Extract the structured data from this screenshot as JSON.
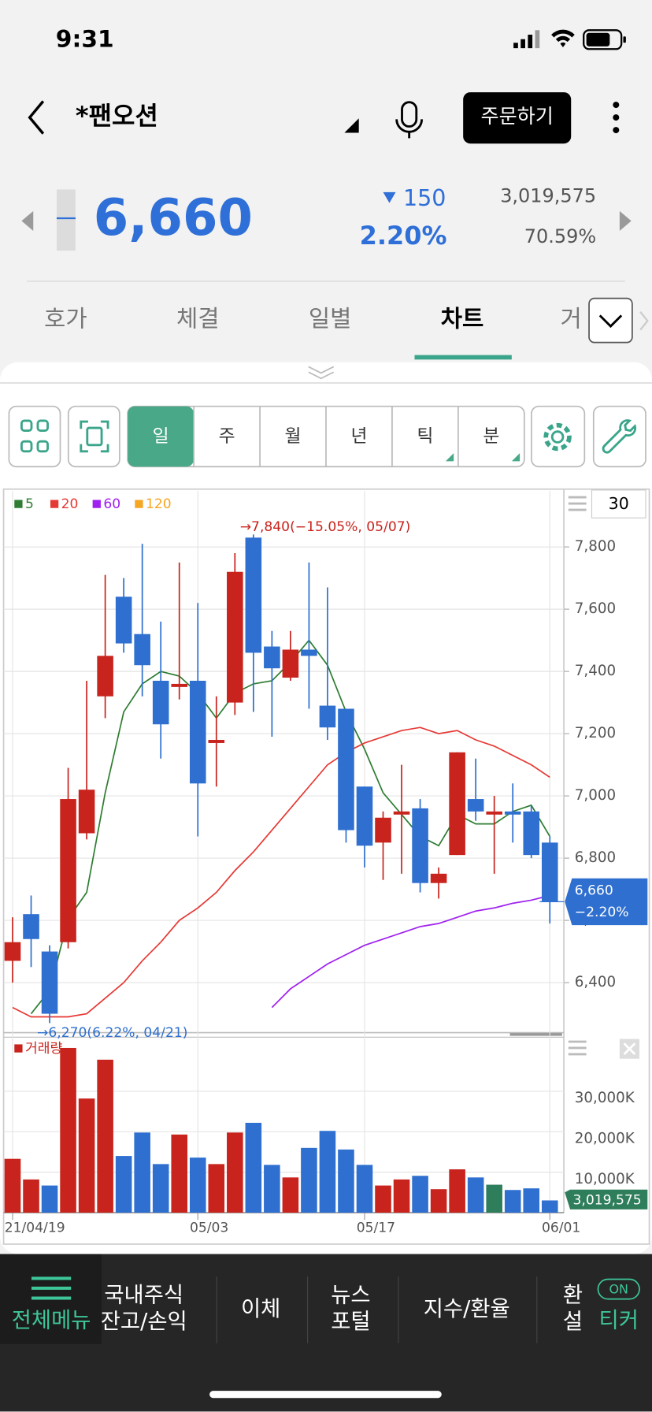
{
  "status_bar": {
    "time": "9:31"
  },
  "header": {
    "title": "*팬오션",
    "order_button": "주문하기"
  },
  "quote": {
    "price": "6,660",
    "change": "150",
    "change_rate": "2.20%",
    "volume": "3,019,575",
    "volume_ratio": "70.59%"
  },
  "tabs": [
    "호가",
    "체결",
    "일별",
    "차트",
    "거"
  ],
  "periods": [
    "일",
    "주",
    "월",
    "년",
    "틱",
    "분"
  ],
  "chart_data": {
    "type": "candlestick",
    "categories": [
      "21/04/19",
      null,
      null,
      null,
      null,
      null,
      null,
      null,
      null,
      null,
      "05/03",
      null,
      null,
      null,
      null,
      null,
      null,
      null,
      null,
      "05/17",
      null,
      null,
      null,
      null,
      null,
      null,
      null,
      null,
      null,
      "06/01"
    ],
    "open": [
      6470,
      6620,
      6500,
      6530,
      6880,
      7320,
      7640,
      7520,
      7370,
      7350,
      7370,
      7170,
      7300,
      7830,
      7480,
      7380,
      7470,
      7290,
      7280,
      7030,
      6850,
      6940,
      6960,
      6720,
      6810,
      6990,
      6940,
      6950,
      6950,
      6850
    ],
    "high": [
      6610,
      6680,
      6520,
      7090,
      7370,
      7710,
      7700,
      7810,
      7560,
      7750,
      7620,
      7320,
      7780,
      7840,
      7530,
      7530,
      7750,
      7670,
      7280,
      7030,
      6950,
      7100,
      6990,
      6770,
      7140,
      7120,
      7000,
      7040,
      6970,
      6870
    ],
    "low": [
      6400,
      6450,
      6270,
      6510,
      6860,
      7250,
      7460,
      7320,
      7120,
      7310,
      6870,
      7030,
      7260,
      7270,
      7190,
      7370,
      7280,
      7180,
      6850,
      6770,
      6730,
      6750,
      6690,
      6670,
      6810,
      6920,
      6750,
      6850,
      6800,
      6590
    ],
    "close": [
      6530,
      6540,
      6300,
      6990,
      7020,
      7450,
      7490,
      7420,
      7230,
      7360,
      7040,
      7180,
      7720,
      7460,
      7410,
      7470,
      7450,
      7220,
      6890,
      6840,
      6930,
      6950,
      6720,
      6750,
      7140,
      6950,
      6950,
      6940,
      6810,
      6660
    ],
    "up_color": "#c8241d",
    "down_color": "#2e6fcf",
    "series": [
      {
        "name": "5",
        "color": "#2e7d32",
        "values": [
          null,
          6300,
          6375,
          6605,
          6690,
          7010,
          7270,
          7360,
          7400,
          7385,
          7330,
          7250,
          7330,
          7360,
          7370,
          7430,
          7500,
          7420,
          7270,
          7150,
          7010,
          6940,
          6870,
          6840,
          6940,
          6910,
          6910,
          6950,
          6970,
          6870
        ]
      },
      {
        "name": "20",
        "color": "#e53935",
        "values": [
          6320,
          6290,
          6290,
          6290,
          6300,
          6350,
          6400,
          6470,
          6530,
          6600,
          6640,
          6690,
          6760,
          6820,
          6890,
          6960,
          7030,
          7100,
          7140,
          7170,
          7190,
          7210,
          7220,
          7200,
          7210,
          7180,
          7160,
          7130,
          7100,
          7060
        ]
      },
      {
        "name": "60",
        "color": "#a020f0",
        "values": [
          null,
          null,
          null,
          null,
          null,
          null,
          null,
          null,
          null,
          null,
          null,
          null,
          null,
          null,
          6320,
          6380,
          6420,
          6460,
          6490,
          6520,
          6540,
          6560,
          6580,
          6590,
          6610,
          6630,
          6640,
          6655,
          6665,
          6680
        ]
      },
      {
        "name": "120",
        "color": "#f5a623",
        "values": [
          null,
          null,
          null,
          null,
          null,
          null,
          null,
          null,
          null,
          null,
          null,
          null,
          null,
          null,
          null,
          null,
          null,
          null,
          null,
          null,
          null,
          null,
          null,
          null,
          null,
          null,
          null,
          null,
          null,
          null
        ]
      }
    ],
    "ylim": [
      6245,
      7980
    ],
    "yticks": [
      {
        "value": 6400,
        "label": "6,400"
      },
      {
        "value": 6600,
        "label": "6,600"
      },
      {
        "value": 6800,
        "label": "6,800"
      },
      {
        "value": 7000,
        "label": "7,000"
      },
      {
        "value": 7200,
        "label": "7,200"
      },
      {
        "value": 7400,
        "label": "7,400"
      },
      {
        "value": 7600,
        "label": "7,600"
      },
      {
        "value": 7800,
        "label": "7,800"
      }
    ],
    "grid": true,
    "period_count": 30,
    "high_label": "→7,840(−15.05%, 05/07)",
    "low_label": "→6,270(6.22%, 04/21)",
    "price_tag": {
      "value": 6660,
      "label": "6,660",
      "change": "−2.20%"
    },
    "volume": {
      "title": "거래량",
      "color": "#c8241d",
      "values": [
        13300000,
        8200000,
        6700000,
        40700000,
        28200000,
        37800000,
        14000000,
        19800000,
        12000000,
        19300000,
        13600000,
        12000000,
        19800000,
        22200000,
        11800000,
        8700000,
        16000000,
        20200000,
        15600000,
        11800000,
        6700000,
        8200000,
        9100000,
        5800000,
        10700000,
        8700000,
        6900000,
        5600000,
        6000000,
        3019575
      ],
      "value_labels": [
        null,
        null,
        null,
        null,
        null,
        null,
        null,
        null,
        null,
        null,
        null,
        null,
        null,
        null,
        null,
        null,
        null,
        null,
        null,
        null,
        null,
        null,
        null,
        null,
        null,
        null,
        null,
        null,
        null,
        "3,019,575"
      ],
      "colors": [
        "#c8241d",
        "#c8241d",
        "#2e6fcf",
        "#c8241d",
        "#c8241d",
        "#c8241d",
        "#2e6fcf",
        "#2e6fcf",
        "#2e6fcf",
        "#c8241d",
        "#2e6fcf",
        "#c8241d",
        "#c8241d",
        "#2e6fcf",
        "#2e6fcf",
        "#c8241d",
        "#2e6fcf",
        "#2e6fcf",
        "#2e6fcf",
        "#2e6fcf",
        "#c8241d",
        "#c8241d",
        "#2e6fcf",
        "#c8241d",
        "#c8241d",
        "#2e6fcf",
        "#2e7d5b",
        "#2e6fcf",
        "#2e6fcf",
        "#2e6fcf"
      ],
      "ylim": [
        0,
        42700000
      ],
      "yticks": [
        {
          "value": 10000000,
          "label": "10,000K"
        },
        {
          "value": 20000000,
          "label": "20,000K"
        },
        {
          "value": 30000000,
          "label": "30,000K"
        }
      ]
    }
  },
  "bottom_nav": {
    "menu": "전체메뉴",
    "items": [
      [
        "국내주식",
        "잔고/손익"
      ],
      [
        "이체"
      ],
      [
        "뉴스",
        "포털"
      ],
      [
        "지수/환율"
      ],
      [
        "환",
        "설"
      ]
    ],
    "toggle": "ON",
    "ticker": "티커"
  }
}
